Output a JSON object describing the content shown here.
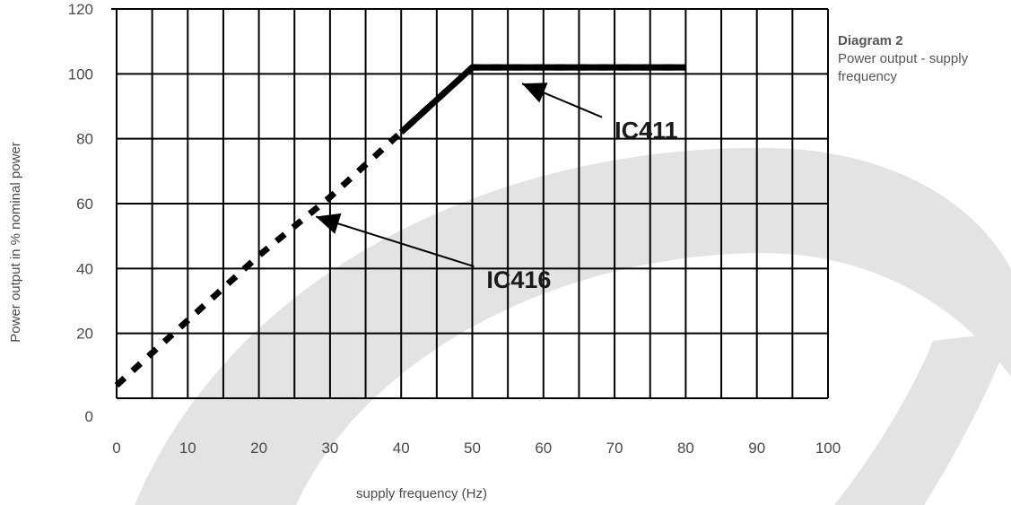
{
  "side_caption": {
    "title": "Diagram 2",
    "subtitle_line1": "Power output - supply",
    "subtitle_line2": "frequency"
  },
  "colors": {
    "grid": "#000000",
    "series": "#000000",
    "tick_text": "#4a4a4a",
    "watermark": "#e3e3e3"
  },
  "chart_data": {
    "type": "line",
    "title": "",
    "xlabel": "supply frequency (Hz)",
    "ylabel": "Power output in % nominal power",
    "xlim": [
      0,
      100
    ],
    "ylim": [
      0,
      120
    ],
    "x_ticks": [
      "0",
      "10",
      "20",
      "30",
      "40",
      "50",
      "60",
      "70",
      "80",
      "90",
      "100"
    ],
    "y_ticks": [
      "0",
      "20",
      "40",
      "60",
      "80",
      "100",
      "120"
    ],
    "x_gridlines": [
      0,
      5,
      10,
      15,
      20,
      25,
      30,
      35,
      40,
      45,
      50,
      55,
      60,
      65,
      70,
      75,
      80,
      85,
      90,
      95,
      100
    ],
    "y_gridlines": [
      0,
      20,
      40,
      60,
      80,
      100,
      120
    ],
    "grid": true,
    "series": [
      {
        "name": "IC416",
        "style": "dashed",
        "x": [
          0,
          10,
          20,
          30,
          40,
          50,
          80
        ],
        "y": [
          4,
          24,
          44,
          62,
          82,
          102,
          102
        ]
      },
      {
        "name": "IC411",
        "style": "solid",
        "x": [
          40,
          50,
          80
        ],
        "y": [
          82,
          102,
          102
        ]
      }
    ],
    "annotations": [
      {
        "text": "IC411",
        "arrow_to": [
          57,
          97
        ],
        "label_at": [
          70,
          80
        ]
      },
      {
        "text": "IC416",
        "arrow_to": [
          28,
          56
        ],
        "label_at": [
          52,
          34
        ]
      }
    ]
  }
}
